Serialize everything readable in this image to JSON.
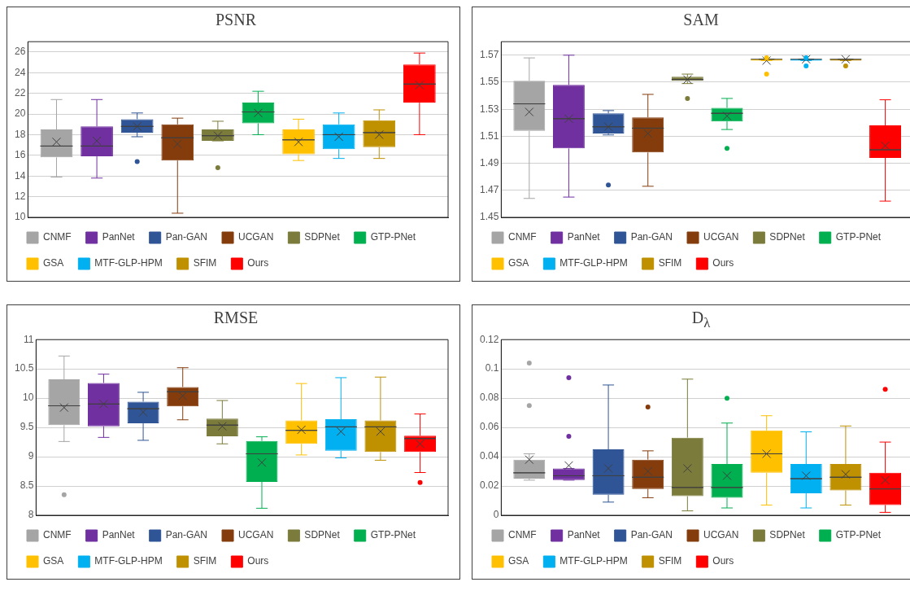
{
  "chart_data": [
    {
      "type": "box",
      "title": "PSNR",
      "categories": [
        null
      ],
      "ylim": [
        10,
        27
      ],
      "yticks": [
        10,
        12,
        14,
        16,
        18,
        20,
        22,
        24,
        26
      ],
      "grid": "y",
      "legend": "bottom",
      "tick_labels": "y",
      "series": [
        {
          "name": "CNMF",
          "color": "#a5a5a5",
          "boxes": [
            {
              "low": 13.9,
              "q1": 15.8,
              "median": 16.9,
              "q3": 18.5,
              "high": 21.4,
              "mean": 17.3
            }
          ]
        },
        {
          "name": "PanNet",
          "color": "#7030a0",
          "boxes": [
            {
              "low": 13.8,
              "q1": 15.9,
              "median": 16.9,
              "q3": 18.8,
              "high": 21.4,
              "mean": 17.4
            }
          ]
        },
        {
          "name": "Pan-GAN",
          "color": "#2f5597",
          "boxes": [
            {
              "low": 17.8,
              "q1": 18.2,
              "median": 18.8,
              "q3": 19.5,
              "high": 20.1,
              "mean": 18.8,
              "outliers": [
                15.4
              ]
            }
          ]
        },
        {
          "name": "UCGAN",
          "color": "#843c0c",
          "boxes": [
            {
              "low": 10.4,
              "q1": 15.5,
              "median": 17.7,
              "q3": 19.0,
              "high": 19.6,
              "mean": 17.1
            }
          ]
        },
        {
          "name": "SDPNet",
          "color": "#7b7b3b",
          "boxes": [
            {
              "low": 17.4,
              "q1": 17.4,
              "median": 17.9,
              "q3": 18.5,
              "high": 19.3,
              "mean": 17.9,
              "outliers": [
                14.8
              ]
            }
          ]
        },
        {
          "name": "GTP-PNet",
          "color": "#00b050",
          "boxes": [
            {
              "low": 18.0,
              "q1": 19.1,
              "median": 20.2,
              "q3": 21.1,
              "high": 22.2,
              "mean": 20.1
            }
          ]
        },
        {
          "name": "GSA",
          "color": "#ffc000",
          "boxes": [
            {
              "low": 15.5,
              "q1": 16.1,
              "median": 17.5,
              "q3": 18.5,
              "high": 19.5,
              "mean": 17.3
            }
          ]
        },
        {
          "name": "MTF-GLP-HPM",
          "color": "#00b0f0",
          "boxes": [
            {
              "low": 15.7,
              "q1": 16.6,
              "median": 18.0,
              "q3": 19.0,
              "high": 20.1,
              "mean": 17.8
            }
          ]
        },
        {
          "name": "SFIM",
          "color": "#bf9000",
          "boxes": [
            {
              "low": 15.7,
              "q1": 16.8,
              "median": 18.2,
              "q3": 19.4,
              "high": 20.4,
              "mean": 18.0
            }
          ]
        },
        {
          "name": "Ours",
          "color": "#ff0000",
          "boxes": [
            {
              "low": 18.0,
              "q1": 21.1,
              "median": 22.9,
              "q3": 24.8,
              "high": 25.9,
              "mean": 22.8
            }
          ]
        }
      ]
    },
    {
      "type": "box",
      "title": "SAM",
      "categories": [
        null
      ],
      "ylim": [
        1.45,
        1.58
      ],
      "yticks": [
        1.45,
        1.47,
        1.49,
        1.51,
        1.53,
        1.55,
        1.57
      ],
      "grid": "y",
      "legend": "bottom",
      "tick_labels": "y",
      "series": [
        {
          "name": "CNMF",
          "color": "#a5a5a5",
          "boxes": [
            {
              "low": 1.464,
              "q1": 1.514,
              "median": 1.534,
              "q3": 1.551,
              "high": 1.568,
              "mean": 1.528
            }
          ]
        },
        {
          "name": "PanNet",
          "color": "#7030a0",
          "boxes": [
            {
              "low": 1.465,
              "q1": 1.501,
              "median": 1.523,
              "q3": 1.548,
              "high": 1.57,
              "mean": 1.523
            }
          ]
        },
        {
          "name": "Pan-GAN",
          "color": "#2f5597",
          "boxes": [
            {
              "low": 1.511,
              "q1": 1.512,
              "median": 1.517,
              "q3": 1.527,
              "high": 1.529,
              "mean": 1.517,
              "outliers": [
                1.474
              ]
            }
          ]
        },
        {
          "name": "UCGAN",
          "color": "#843c0c",
          "boxes": [
            {
              "low": 1.473,
              "q1": 1.498,
              "median": 1.516,
              "q3": 1.524,
              "high": 1.541,
              "mean": 1.512
            }
          ]
        },
        {
          "name": "SDPNet",
          "color": "#7b7b3b",
          "boxes": [
            {
              "low": 1.549,
              "q1": 1.551,
              "median": 1.552,
              "q3": 1.554,
              "high": 1.556,
              "mean": 1.552,
              "outliers": [
                1.538
              ]
            }
          ]
        },
        {
          "name": "GTP-PNet",
          "color": "#00b050",
          "boxes": [
            {
              "low": 1.515,
              "q1": 1.521,
              "median": 1.527,
              "q3": 1.531,
              "high": 1.538,
              "mean": 1.525,
              "outliers": [
                1.501
              ]
            }
          ]
        },
        {
          "name": "GSA",
          "color": "#ffc000",
          "boxes": [
            {
              "low": 1.566,
              "q1": 1.566,
              "median": 1.567,
              "q3": 1.567,
              "high": 1.567,
              "mean": 1.566,
              "outliers": [
                1.568,
                1.556
              ]
            }
          ]
        },
        {
          "name": "MTF-GLP-HPM",
          "color": "#00b0f0",
          "boxes": [
            {
              "low": 1.566,
              "q1": 1.566,
              "median": 1.567,
              "q3": 1.567,
              "high": 1.567,
              "mean": 1.567,
              "outliers": [
                1.568,
                1.562
              ]
            }
          ]
        },
        {
          "name": "SFIM",
          "color": "#bf9000",
          "boxes": [
            {
              "low": 1.566,
              "q1": 1.566,
              "median": 1.567,
              "q3": 1.567,
              "high": 1.567,
              "mean": 1.567,
              "outliers": [
                1.562
              ]
            }
          ]
        },
        {
          "name": "Ours",
          "color": "#ff0000",
          "boxes": [
            {
              "low": 1.462,
              "q1": 1.494,
              "median": 1.5,
              "q3": 1.518,
              "high": 1.537,
              "mean": 1.503
            }
          ]
        }
      ]
    },
    {
      "type": "box",
      "title": "RMSE",
      "categories": [
        null
      ],
      "ylim": [
        8,
        11
      ],
      "yticks": [
        8,
        8.5,
        9,
        9.5,
        10,
        10.5,
        11
      ],
      "grid": "y",
      "legend": "bottom",
      "tick_labels": "y",
      "series": [
        {
          "name": "CNMF",
          "color": "#a5a5a5",
          "boxes": [
            {
              "low": 9.26,
              "q1": 9.54,
              "median": 9.87,
              "q3": 10.32,
              "high": 10.72,
              "mean": 9.84,
              "outliers": [
                8.35
              ]
            }
          ]
        },
        {
          "name": "PanNet",
          "color": "#7030a0",
          "boxes": [
            {
              "low": 9.33,
              "q1": 9.52,
              "median": 9.9,
              "q3": 10.26,
              "high": 10.41,
              "mean": 9.9
            }
          ]
        },
        {
          "name": "Pan-GAN",
          "color": "#2f5597",
          "boxes": [
            {
              "low": 9.28,
              "q1": 9.57,
              "median": 9.82,
              "q3": 9.94,
              "high": 10.1,
              "mean": 9.76
            }
          ]
        },
        {
          "name": "UCGAN",
          "color": "#843c0c",
          "boxes": [
            {
              "low": 9.63,
              "q1": 9.86,
              "median": 10.11,
              "q3": 10.19,
              "high": 10.52,
              "mean": 10.04
            }
          ]
        },
        {
          "name": "SDPNet",
          "color": "#7b7b3b",
          "boxes": [
            {
              "low": 9.22,
              "q1": 9.35,
              "median": 9.54,
              "q3": 9.65,
              "high": 9.96,
              "mean": 9.52
            }
          ]
        },
        {
          "name": "GTP-PNet",
          "color": "#00b050",
          "boxes": [
            {
              "low": 8.12,
              "q1": 8.57,
              "median": 9.05,
              "q3": 9.27,
              "high": 9.34,
              "mean": 8.9
            }
          ]
        },
        {
          "name": "GSA",
          "color": "#ffc000",
          "boxes": [
            {
              "low": 9.03,
              "q1": 9.22,
              "median": 9.45,
              "q3": 9.62,
              "high": 10.25,
              "mean": 9.46
            }
          ]
        },
        {
          "name": "MTF-GLP-HPM",
          "color": "#00b0f0",
          "boxes": [
            {
              "low": 8.98,
              "q1": 9.1,
              "median": 9.51,
              "q3": 9.64,
              "high": 10.35,
              "mean": 9.43
            }
          ]
        },
        {
          "name": "SFIM",
          "color": "#bf9000",
          "boxes": [
            {
              "low": 8.94,
              "q1": 9.08,
              "median": 9.51,
              "q3": 9.62,
              "high": 10.36,
              "mean": 9.43
            }
          ]
        },
        {
          "name": "Ours",
          "color": "#ff0000",
          "boxes": [
            {
              "low": 8.73,
              "q1": 9.08,
              "median": 9.31,
              "q3": 9.36,
              "high": 9.73,
              "mean": 9.22,
              "outliers": [
                8.56
              ]
            }
          ]
        }
      ]
    },
    {
      "type": "box",
      "title": "D$_{λ}$",
      "categories": [
        null
      ],
      "ylim": [
        0,
        0.12
      ],
      "yticks": [
        0,
        0.02,
        0.04,
        0.06,
        0.08,
        0.1,
        0.12
      ],
      "grid": "y",
      "legend": "bottom",
      "tick_labels": "y",
      "series": [
        {
          "name": "CNMF",
          "color": "#a5a5a5",
          "boxes": [
            {
              "low": 0.024,
              "q1": 0.025,
              "median": 0.029,
              "q3": 0.038,
              "high": 0.042,
              "mean": 0.038,
              "outliers": [
                0.104,
                0.075
              ]
            }
          ]
        },
        {
          "name": "PanNet",
          "color": "#7030a0",
          "boxes": [
            {
              "low": 0.024,
              "q1": 0.024,
              "median": 0.027,
              "q3": 0.032,
              "high": 0.032,
              "mean": 0.034,
              "outliers": [
                0.094,
                0.054
              ]
            }
          ]
        },
        {
          "name": "Pan-GAN",
          "color": "#2f5597",
          "boxes": [
            {
              "low": 0.009,
              "q1": 0.014,
              "median": 0.027,
              "q3": 0.045,
              "high": 0.089,
              "mean": 0.032
            }
          ]
        },
        {
          "name": "UCGAN",
          "color": "#843c0c",
          "boxes": [
            {
              "low": 0.012,
              "q1": 0.018,
              "median": 0.026,
              "q3": 0.038,
              "high": 0.044,
              "mean": 0.03,
              "outliers": [
                0.074
              ]
            }
          ]
        },
        {
          "name": "SDPNet",
          "color": "#7b7b3b",
          "boxes": [
            {
              "low": 0.003,
              "q1": 0.013,
              "median": 0.019,
              "q3": 0.053,
              "high": 0.093,
              "mean": 0.032
            }
          ]
        },
        {
          "name": "GTP-PNet",
          "color": "#00b050",
          "boxes": [
            {
              "low": 0.005,
              "q1": 0.012,
              "median": 0.019,
              "q3": 0.035,
              "high": 0.063,
              "mean": 0.027,
              "outliers": [
                0.08
              ]
            }
          ]
        },
        {
          "name": "GSA",
          "color": "#ffc000",
          "boxes": [
            {
              "low": 0.007,
              "q1": 0.029,
              "median": 0.042,
              "q3": 0.058,
              "high": 0.068,
              "mean": 0.042
            }
          ]
        },
        {
          "name": "MTF-GLP-HPM",
          "color": "#00b0f0",
          "boxes": [
            {
              "low": 0.005,
              "q1": 0.015,
              "median": 0.025,
              "q3": 0.035,
              "high": 0.057,
              "mean": 0.027
            }
          ]
        },
        {
          "name": "SFIM",
          "color": "#bf9000",
          "boxes": [
            {
              "low": 0.007,
              "q1": 0.017,
              "median": 0.026,
              "q3": 0.035,
              "high": 0.061,
              "mean": 0.028
            }
          ]
        },
        {
          "name": "Ours",
          "color": "#ff0000",
          "boxes": [
            {
              "low": 0.002,
              "q1": 0.007,
              "median": 0.018,
              "q3": 0.029,
              "high": 0.05,
              "mean": 0.024,
              "outliers": [
                0.086
              ]
            }
          ]
        }
      ]
    }
  ]
}
